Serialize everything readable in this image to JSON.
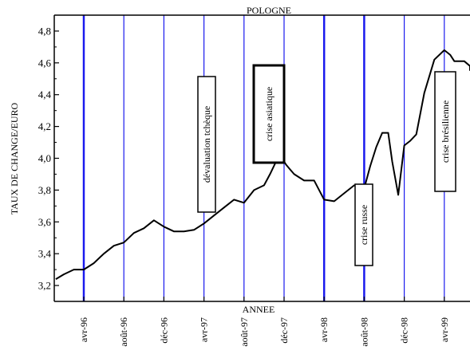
{
  "chart_data": {
    "type": "line",
    "title": "POLOGNE",
    "xlabel": "ANNEE",
    "ylabel": "TAUX DE CHANGE/EURO",
    "ylim": [
      3.1,
      4.9
    ],
    "xlim": [
      -2.8,
      39.5
    ],
    "y_ticks": [
      3.2,
      3.4,
      3.6,
      3.8,
      4.0,
      4.2,
      4.4,
      4.6,
      4.8
    ],
    "y_tick_labels": [
      "3,2",
      "3,4",
      "3,6",
      "3,8",
      "4,0",
      "4,2",
      "4,4",
      "4,6",
      "4,8"
    ],
    "x_ticks": [
      0,
      4,
      8,
      12,
      16,
      20,
      24,
      28,
      32,
      36
    ],
    "x_tick_labels": [
      "avr-96",
      "août-96",
      "déc-96",
      "avr-97",
      "août-97",
      "déc-97",
      "avr-98",
      "août-98",
      "déc-98",
      "avr-99"
    ],
    "vertical_lines_at": [
      0,
      4,
      8,
      12,
      16,
      20,
      24,
      28,
      32,
      36
    ],
    "line_color": "#000000",
    "grid_color": "#1a1aee",
    "series": [
      {
        "x": [
          -2.8,
          -2,
          -1,
          0,
          1,
          2,
          3,
          4,
          5,
          6,
          7,
          8,
          9,
          10,
          11,
          12,
          13,
          14,
          15,
          16,
          17,
          18,
          18.6,
          19.2,
          19.8,
          20.2,
          20.6,
          21,
          22,
          23,
          24,
          25,
          26,
          27,
          28,
          28.6,
          29.2,
          29.8,
          30.4,
          30.8,
          31.4,
          32,
          32.6,
          33.2,
          34,
          35,
          36,
          36.6,
          37,
          38,
          38.6,
          39.5
        ],
        "y": [
          3.24,
          3.27,
          3.3,
          3.3,
          3.34,
          3.4,
          3.45,
          3.47,
          3.53,
          3.56,
          3.61,
          3.57,
          3.54,
          3.54,
          3.55,
          3.59,
          3.64,
          3.69,
          3.74,
          3.72,
          3.8,
          3.83,
          3.9,
          3.98,
          4.0,
          3.96,
          3.93,
          3.9,
          3.86,
          3.86,
          3.74,
          3.73,
          3.78,
          3.83,
          3.81,
          3.95,
          4.07,
          4.16,
          4.16,
          3.98,
          3.77,
          4.08,
          4.11,
          4.15,
          4.41,
          4.62,
          4.68,
          4.65,
          4.61,
          4.61,
          4.58,
          4.55
        ]
      }
    ],
    "annotations": [
      {
        "text": "dévaluation tchèque"
      },
      {
        "text": "crise asiatique"
      },
      {
        "text": "crise russe"
      },
      {
        "text": "crise brésilienne"
      }
    ]
  }
}
